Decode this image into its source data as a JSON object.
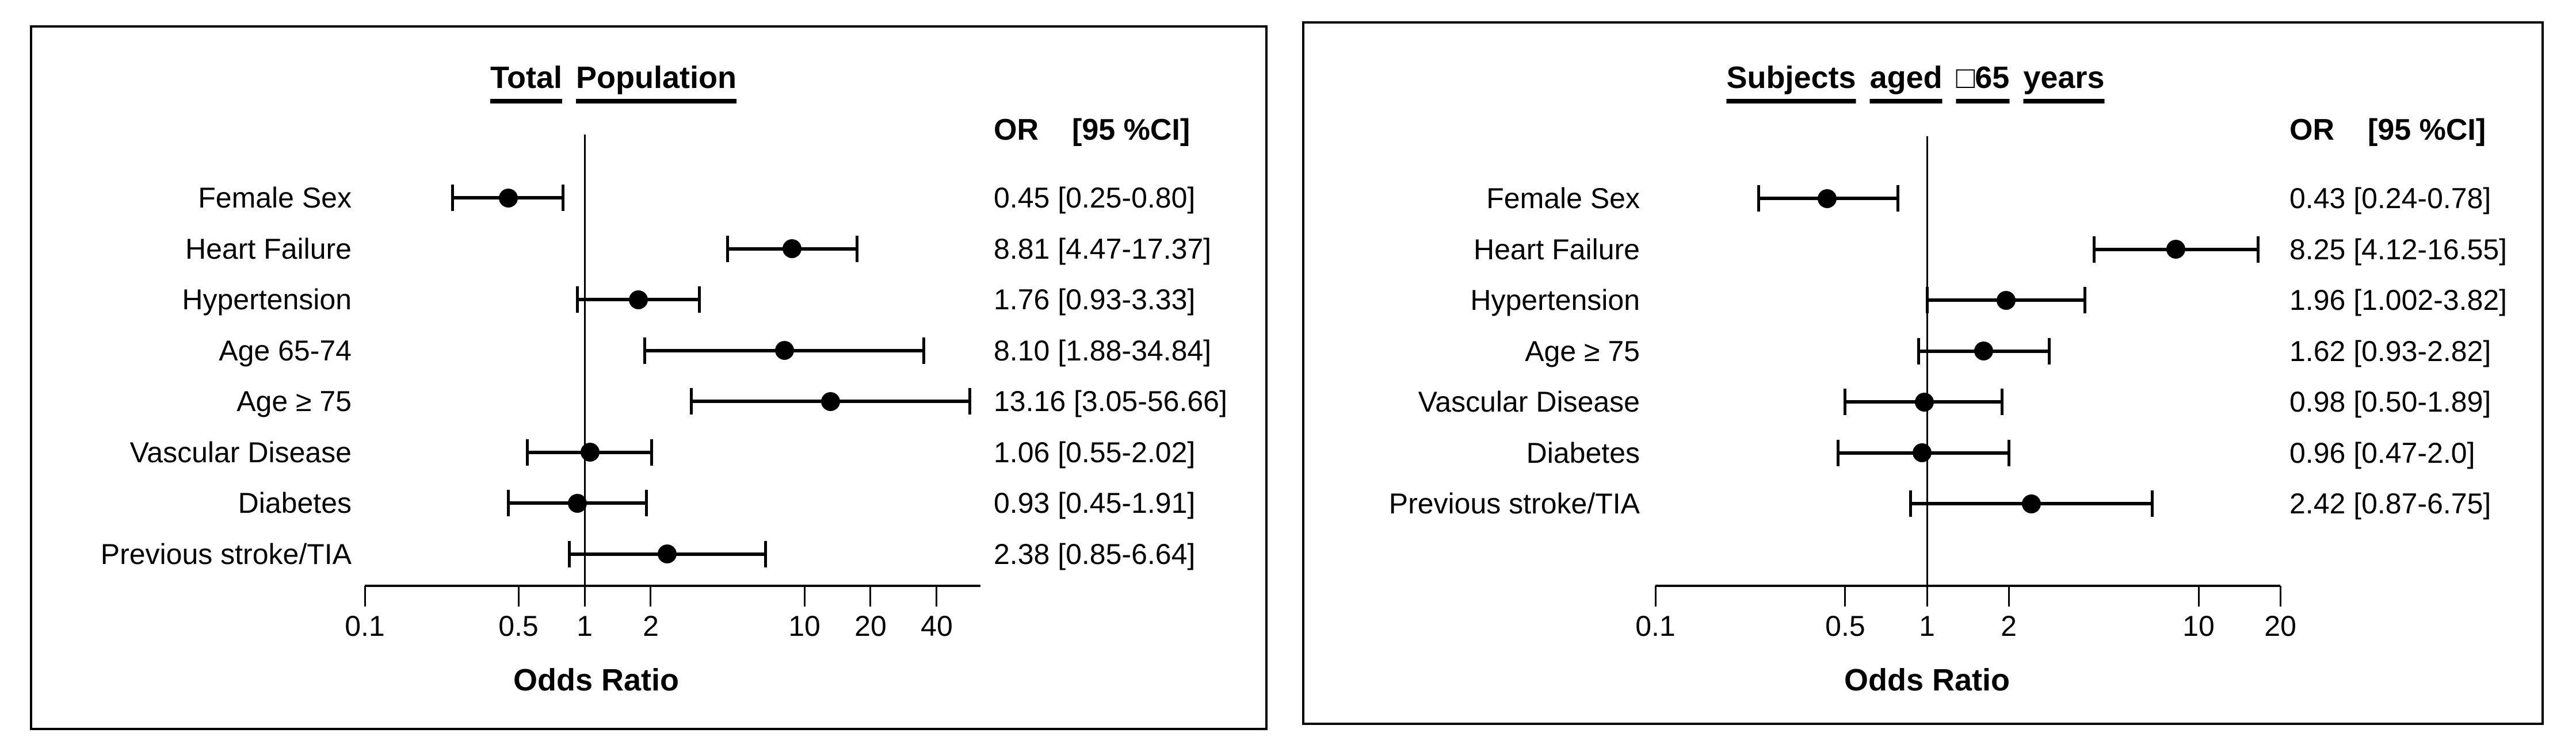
{
  "colors": {
    "foreground": "#000000",
    "background": "#ffffff"
  },
  "chart_data": [
    {
      "type": "scatter",
      "variant": "forest-plot",
      "title": "Total Population",
      "or_header": {
        "or": "OR",
        "ci": "[95 %CI]"
      },
      "xlabel": "Odds Ratio",
      "x_axis": {
        "scale": "log10",
        "min": 0.1,
        "max": 63,
        "ticks": [
          0.1,
          0.5,
          1,
          2,
          10,
          20,
          40
        ],
        "tick_labels": [
          "0.1",
          "0.5",
          "1",
          "2",
          "10",
          "20",
          "40"
        ],
        "reference_line": 1,
        "grid": false
      },
      "rows": [
        {
          "label": "Female Sex",
          "or": 0.45,
          "ci_low": 0.25,
          "ci_high": 0.8,
          "text": "0.45 [0.25-0.80]"
        },
        {
          "label": "Heart Failure",
          "or": 8.81,
          "ci_low": 4.47,
          "ci_high": 17.37,
          "text": "8.81 [4.47-17.37]"
        },
        {
          "label": "Hypertension",
          "or": 1.76,
          "ci_low": 0.93,
          "ci_high": 3.33,
          "text": "1.76 [0.93-3.33]"
        },
        {
          "label": "Age 65-74",
          "or": 8.1,
          "ci_low": 1.88,
          "ci_high": 34.84,
          "text": "8.10 [1.88-34.84]"
        },
        {
          "label": "Age ≥ 75",
          "or": 13.16,
          "ci_low": 3.05,
          "ci_high": 56.66,
          "text": "13.16 [3.05-56.66]"
        },
        {
          "label": "Vascular Disease",
          "or": 1.06,
          "ci_low": 0.55,
          "ci_high": 2.02,
          "text": "1.06 [0.55-2.02]"
        },
        {
          "label": "Diabetes",
          "or": 0.93,
          "ci_low": 0.45,
          "ci_high": 1.91,
          "text": "0.93 [0.45-1.91]"
        },
        {
          "label": "Previous stroke/TIA",
          "or": 2.38,
          "ci_low": 0.85,
          "ci_high": 6.64,
          "text": "2.38 [0.85-6.64]"
        }
      ]
    },
    {
      "type": "scatter",
      "variant": "forest-plot",
      "title": "Subjects aged □65 years",
      "or_header": {
        "or": "OR",
        "ci": "[95 %CI]"
      },
      "xlabel": "Odds Ratio",
      "x_axis": {
        "scale": "log10",
        "min": 0.1,
        "max": 20,
        "ticks": [
          0.1,
          0.5,
          1,
          2,
          10,
          20
        ],
        "tick_labels": [
          "0.1",
          "0.5",
          "1",
          "2",
          "10",
          "20"
        ],
        "reference_line": 1,
        "grid": false
      },
      "rows": [
        {
          "label": "Female Sex",
          "or": 0.43,
          "ci_low": 0.24,
          "ci_high": 0.78,
          "text": "0.43 [0.24-0.78]"
        },
        {
          "label": "Heart Failure",
          "or": 8.25,
          "ci_low": 4.12,
          "ci_high": 16.55,
          "text": "8.25 [4.12-16.55]"
        },
        {
          "label": "Hypertension",
          "or": 1.96,
          "ci_low": 1.002,
          "ci_high": 3.82,
          "text": "1.96 [1.002-3.82]"
        },
        {
          "label": "Age ≥ 75",
          "or": 1.62,
          "ci_low": 0.93,
          "ci_high": 2.82,
          "text": "1.62 [0.93-2.82]"
        },
        {
          "label": "Vascular Disease",
          "or": 0.98,
          "ci_low": 0.5,
          "ci_high": 1.89,
          "text": "0.98 [0.50-1.89]"
        },
        {
          "label": "Diabetes",
          "or": 0.96,
          "ci_low": 0.47,
          "ci_high": 2.0,
          "text": "0.96 [0.47-2.0]"
        },
        {
          "label": "Previous stroke/TIA",
          "or": 2.42,
          "ci_low": 0.87,
          "ci_high": 6.75,
          "text": "2.42 [0.87-6.75]"
        }
      ]
    }
  ]
}
